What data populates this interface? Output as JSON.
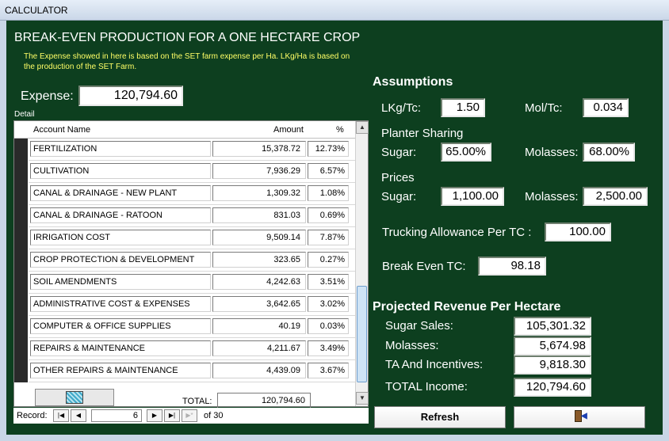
{
  "window": {
    "title": "CALCULATOR"
  },
  "header": {
    "title": "BREAK-EVEN PRODUCTION FOR A ONE HECTARE CROP",
    "note": "The Expense showed in here is based on the SET farm expense per Ha. LKg/Ha is based on the production of the SET Farm."
  },
  "expense": {
    "label": "Expense:",
    "value": "120,794.60"
  },
  "detail": {
    "label": "Detail",
    "columns": {
      "name": "Account Name",
      "amount": "Amount",
      "pct": "%"
    },
    "rows": [
      {
        "name": "FERTILIZATION",
        "amount": "15,378.72",
        "pct": "12.73%"
      },
      {
        "name": "CULTIVATION",
        "amount": "7,936.29",
        "pct": "6.57%"
      },
      {
        "name": "CANAL & DRAINAGE - NEW PLANT",
        "amount": "1,309.32",
        "pct": "1.08%"
      },
      {
        "name": "CANAL & DRAINAGE - RATOON",
        "amount": "831.03",
        "pct": "0.69%"
      },
      {
        "name": "IRRIGATION COST",
        "amount": "9,509.14",
        "pct": "7.87%"
      },
      {
        "name": "CROP PROTECTION & DEVELOPMENT",
        "amount": "323.65",
        "pct": "0.27%"
      },
      {
        "name": "SOIL AMENDMENTS",
        "amount": "4,242.63",
        "pct": "3.51%"
      },
      {
        "name": "ADMINISTRATIVE COST & EXPENSES",
        "amount": "3,642.65",
        "pct": "3.02%"
      },
      {
        "name": "COMPUTER & OFFICE SUPPLIES",
        "amount": "40.19",
        "pct": "0.03%"
      },
      {
        "name": "REPAIRS & MAINTENANCE",
        "amount": "4,211.67",
        "pct": "3.49%"
      },
      {
        "name": "OTHER REPAIRS & MAINTENANCE",
        "amount": "4,439.09",
        "pct": "3.67%"
      }
    ],
    "total_label": "TOTAL:",
    "total_value": "120,794.60",
    "calc_icon": "calculator-icon"
  },
  "record_nav": {
    "label": "Record:",
    "current": "6",
    "of_text": "of  30"
  },
  "assumptions": {
    "title": "Assumptions",
    "lkg_tc_label": "LKg/Tc:",
    "lkg_tc": "1.50",
    "mol_tc_label": "Mol/Tc:",
    "mol_tc": "0.034",
    "planter_sharing_label": "Planter Sharing",
    "ps_sugar_label": "Sugar:",
    "ps_sugar": "65.00%",
    "ps_molasses_label": "Molasses:",
    "ps_molasses": "68.00%",
    "prices_label": "Prices",
    "pr_sugar_label": "Sugar:",
    "pr_sugar": "1,100.00",
    "pr_molasses_label": "Molasses:",
    "pr_molasses": "2,500.00",
    "trucking_label": "Trucking Allowance Per TC :",
    "trucking": "100.00",
    "breakeven_label": "Break Even TC:",
    "breakeven": "98.18"
  },
  "projected": {
    "title": "Projected Revenue Per Hectare",
    "sugar_sales_label": "Sugar Sales:",
    "sugar_sales": "105,301.32",
    "molasses_label": "Molasses:",
    "molasses": "5,674.98",
    "ta_label": "TA And Incentives:",
    "ta": "9,818.30",
    "total_label": "TOTAL Income:",
    "total": "120,794.60"
  },
  "buttons": {
    "refresh": "Refresh",
    "exit_icon": "exit-door-icon"
  }
}
